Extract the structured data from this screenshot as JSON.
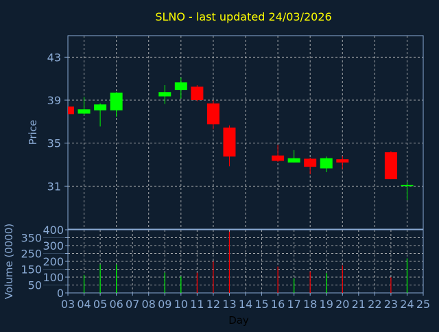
{
  "chart_data": [
    {
      "type": "candlestick",
      "title": "SLNO - last updated 24/03/2026",
      "ylabel": "Price",
      "xlabel": "Day",
      "ylim": [
        27,
        45
      ],
      "yticks": [
        31,
        35,
        39,
        43
      ],
      "xlim": [
        3,
        25
      ],
      "xtick_labels": [
        "03",
        "04",
        "05",
        "06",
        "07",
        "08",
        "09",
        "10",
        "11",
        "12",
        "13",
        "14",
        "15",
        "16",
        "17",
        "18",
        "19",
        "20",
        "21",
        "22",
        "23",
        "24",
        "25"
      ],
      "grid": true,
      "colors": {
        "up": "#00ff00",
        "down": "#ff0000",
        "title": "#ffff00",
        "axis": "#8aaad4",
        "background": "#0f1e2f",
        "grid": "#c8c8c8"
      },
      "candles": [
        {
          "day": 3,
          "open": 38.4,
          "high": 38.4,
          "low": 37.7,
          "close": 37.7
        },
        {
          "day": 4,
          "open": 37.75,
          "high": 39.3,
          "low": 37.6,
          "close": 38.15
        },
        {
          "day": 5,
          "open": 38.05,
          "high": 38.7,
          "low": 36.55,
          "close": 38.6
        },
        {
          "day": 6,
          "open": 38.05,
          "high": 39.75,
          "low": 37.45,
          "close": 39.7
        },
        {
          "day": 9,
          "open": 39.35,
          "high": 40.4,
          "low": 38.65,
          "close": 39.75
        },
        {
          "day": 10,
          "open": 39.95,
          "high": 41.1,
          "low": 39.15,
          "close": 40.65
        },
        {
          "day": 11,
          "open": 40.25,
          "high": 40.4,
          "low": 38.9,
          "close": 39.0
        },
        {
          "day": 12,
          "open": 38.7,
          "high": 39.0,
          "low": 36.3,
          "close": 36.75
        },
        {
          "day": 13,
          "open": 36.45,
          "high": 36.65,
          "low": 32.85,
          "close": 33.75
        },
        {
          "day": 16,
          "open": 33.85,
          "high": 34.85,
          "low": 33.25,
          "close": 33.35
        },
        {
          "day": 17,
          "open": 33.2,
          "high": 34.35,
          "low": 33.2,
          "close": 33.6
        },
        {
          "day": 18,
          "open": 33.55,
          "high": 33.65,
          "low": 32.1,
          "close": 32.8
        },
        {
          "day": 19,
          "open": 32.65,
          "high": 33.75,
          "low": 32.3,
          "close": 33.6
        },
        {
          "day": 20,
          "open": 33.5,
          "high": 33.8,
          "low": 32.6,
          "close": 33.2
        },
        {
          "day": 23,
          "open": 34.15,
          "high": 34.25,
          "low": 31.65,
          "close": 31.65
        },
        {
          "day": 24,
          "open": 31.0,
          "high": 31.4,
          "low": 29.7,
          "close": 31.1
        }
      ]
    },
    {
      "type": "bar",
      "ylabel": "Volume (0000)",
      "xlabel": "Day",
      "ylim": [
        0,
        400
      ],
      "yticks": [
        0,
        50,
        100,
        150,
        200,
        250,
        300,
        350,
        400
      ],
      "grid": true,
      "bars": [
        {
          "day": 4,
          "value": 114,
          "dir": "up"
        },
        {
          "day": 5,
          "value": 180,
          "dir": "up"
        },
        {
          "day": 6,
          "value": 180,
          "dir": "up"
        },
        {
          "day": 9,
          "value": 128,
          "dir": "up"
        },
        {
          "day": 10,
          "value": 104,
          "dir": "up"
        },
        {
          "day": 11,
          "value": 128,
          "dir": "down"
        },
        {
          "day": 12,
          "value": 200,
          "dir": "down"
        },
        {
          "day": 13,
          "value": 388,
          "dir": "down"
        },
        {
          "day": 16,
          "value": 167,
          "dir": "down"
        },
        {
          "day": 17,
          "value": 93,
          "dir": "up"
        },
        {
          "day": 18,
          "value": 136,
          "dir": "down"
        },
        {
          "day": 19,
          "value": 125,
          "dir": "up"
        },
        {
          "day": 20,
          "value": 174,
          "dir": "down"
        },
        {
          "day": 23,
          "value": 99,
          "dir": "down"
        },
        {
          "day": 24,
          "value": 219,
          "dir": "up"
        }
      ]
    }
  ]
}
